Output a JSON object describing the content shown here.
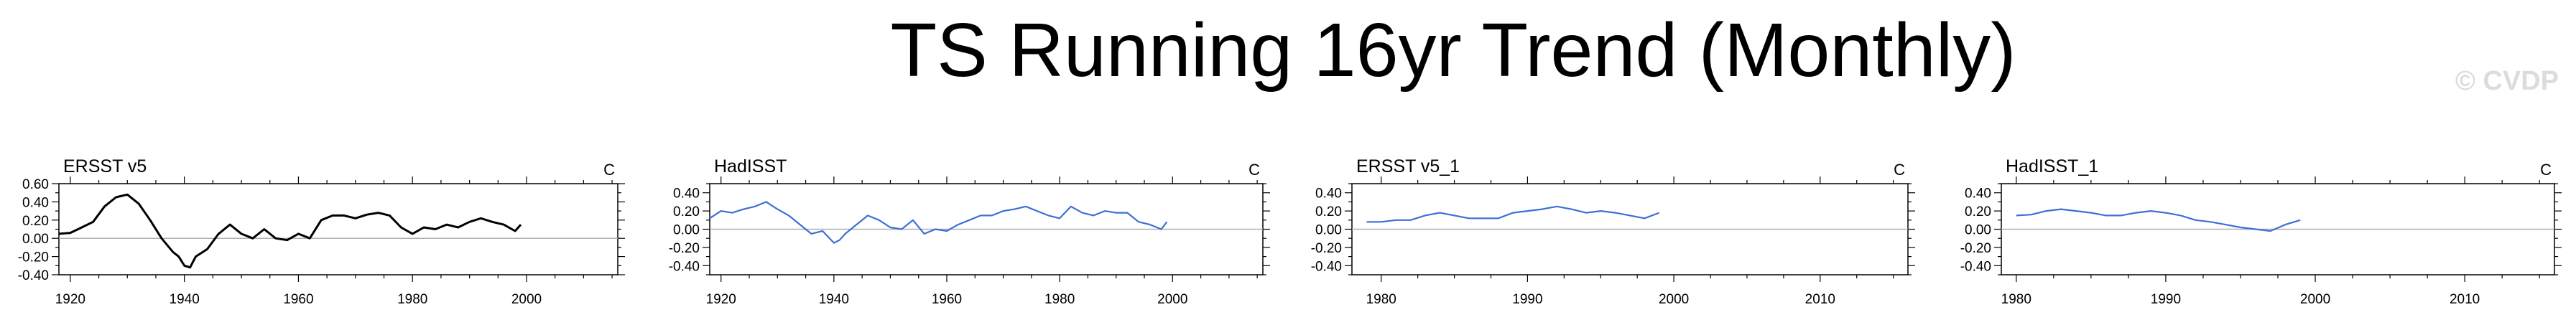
{
  "title": "TS Running 16yr Trend (Monthly)",
  "watermark": "© CVDP",
  "colors": {
    "black_series": "#000000",
    "blue_series": "#3d6fd6",
    "zero_line": "#b0b0b0",
    "axes": "#000000"
  },
  "chart_data": [
    {
      "type": "line",
      "title": "ERSST v5",
      "units": "C",
      "color": "#000000",
      "xlim": [
        1918,
        2016
      ],
      "ylim": [
        -0.4,
        0.6
      ],
      "xticks": [
        1920,
        1940,
        1960,
        1980,
        2000
      ],
      "xtick_labels": [
        "1920",
        "1940",
        "1960",
        "1980",
        "2000"
      ],
      "yticks": [
        -0.4,
        -0.2,
        0.0,
        0.2,
        0.4,
        0.6
      ],
      "ytick_labels": [
        "-0.40",
        "-0.20",
        "0.00",
        "0.20",
        "0.40",
        "0.60"
      ],
      "series": [
        {
          "x": [
            1918,
            1920,
            1922,
            1924,
            1926,
            1928,
            1930,
            1932,
            1934,
            1936,
            1938,
            1939,
            1940,
            1941,
            1942,
            1944,
            1946,
            1948,
            1950,
            1952,
            1954,
            1956,
            1958,
            1960,
            1962,
            1964,
            1966,
            1968,
            1970,
            1972,
            1974,
            1976,
            1978,
            1980,
            1982,
            1984,
            1986,
            1988,
            1990,
            1992,
            1994,
            1996,
            1998,
            1999
          ],
          "y": [
            0.05,
            0.06,
            0.12,
            0.18,
            0.35,
            0.45,
            0.48,
            0.38,
            0.2,
            0.0,
            -0.15,
            -0.2,
            -0.3,
            -0.32,
            -0.2,
            -0.12,
            0.05,
            0.15,
            0.05,
            0.0,
            0.1,
            0.0,
            -0.02,
            0.05,
            0.0,
            0.2,
            0.25,
            0.25,
            0.22,
            0.26,
            0.28,
            0.25,
            0.12,
            0.05,
            0.12,
            0.1,
            0.15,
            0.12,
            0.18,
            0.22,
            0.18,
            0.15,
            0.08,
            0.15
          ]
        }
      ]
    },
    {
      "type": "line",
      "title": "HadISST",
      "units": "C",
      "color": "#3d6fd6",
      "xlim": [
        1918,
        2016
      ],
      "ylim": [
        -0.5,
        0.5
      ],
      "xticks": [
        1920,
        1940,
        1960,
        1980,
        2000
      ],
      "xtick_labels": [
        "1920",
        "1940",
        "1960",
        "1980",
        "2000"
      ],
      "yticks": [
        -0.4,
        -0.2,
        0.0,
        0.2,
        0.4
      ],
      "ytick_labels": [
        "-0.40",
        "-0.20",
        "0.00",
        "0.20",
        "0.40"
      ],
      "series": [
        {
          "x": [
            1918,
            1920,
            1922,
            1924,
            1926,
            1928,
            1930,
            1932,
            1934,
            1936,
            1938,
            1940,
            1941,
            1942,
            1944,
            1946,
            1948,
            1950,
            1952,
            1954,
            1956,
            1958,
            1960,
            1962,
            1964,
            1966,
            1968,
            1970,
            1972,
            1974,
            1976,
            1978,
            1980,
            1982,
            1984,
            1986,
            1988,
            1990,
            1992,
            1994,
            1996,
            1998,
            1999
          ],
          "y": [
            0.12,
            0.2,
            0.18,
            0.22,
            0.25,
            0.3,
            0.22,
            0.15,
            0.05,
            -0.05,
            -0.02,
            -0.15,
            -0.12,
            -0.05,
            0.05,
            0.15,
            0.1,
            0.02,
            0.0,
            0.1,
            -0.05,
            0.0,
            -0.02,
            0.05,
            0.1,
            0.15,
            0.15,
            0.2,
            0.22,
            0.25,
            0.2,
            0.15,
            0.12,
            0.25,
            0.18,
            0.15,
            0.2,
            0.18,
            0.18,
            0.08,
            0.05,
            0.0,
            0.08
          ]
        }
      ]
    },
    {
      "type": "line",
      "title": "ERSST v5_1",
      "units": "C",
      "color": "#3d6fd6",
      "xlim": [
        1978,
        2016
      ],
      "ylim": [
        -0.5,
        0.5
      ],
      "xticks": [
        1980,
        1990,
        2000,
        2010
      ],
      "xtick_labels": [
        "1980",
        "1990",
        "2000",
        "2010"
      ],
      "yticks": [
        -0.4,
        -0.2,
        0.0,
        0.2,
        0.4
      ],
      "ytick_labels": [
        "-0.40",
        "-0.20",
        "0.00",
        "0.20",
        "0.40"
      ],
      "series": [
        {
          "x": [
            1979,
            1980,
            1981,
            1982,
            1983,
            1984,
            1985,
            1986,
            1987,
            1988,
            1989,
            1990,
            1991,
            1992,
            1993,
            1994,
            1995,
            1996,
            1997,
            1998,
            1999
          ],
          "y": [
            0.08,
            0.08,
            0.1,
            0.1,
            0.15,
            0.18,
            0.15,
            0.12,
            0.12,
            0.12,
            0.18,
            0.2,
            0.22,
            0.25,
            0.22,
            0.18,
            0.2,
            0.18,
            0.15,
            0.12,
            0.18
          ]
        }
      ]
    },
    {
      "type": "line",
      "title": "HadISST_1",
      "units": "C",
      "color": "#3d6fd6",
      "xlim": [
        1979,
        2016
      ],
      "ylim": [
        -0.5,
        0.5
      ],
      "xticks": [
        1980,
        1990,
        2000,
        2010
      ],
      "xtick_labels": [
        "1980",
        "1990",
        "2000",
        "2010"
      ],
      "yticks": [
        -0.4,
        -0.2,
        0.0,
        0.2,
        0.4
      ],
      "ytick_labels": [
        "-0.40",
        "-0.20",
        "0.00",
        "0.20",
        "0.40"
      ],
      "series": [
        {
          "x": [
            1980,
            1981,
            1982,
            1983,
            1984,
            1985,
            1986,
            1987,
            1988,
            1989,
            1990,
            1991,
            1992,
            1993,
            1994,
            1995,
            1996,
            1997,
            1998,
            1999
          ],
          "y": [
            0.15,
            0.16,
            0.2,
            0.22,
            0.2,
            0.18,
            0.15,
            0.15,
            0.18,
            0.2,
            0.18,
            0.15,
            0.1,
            0.08,
            0.05,
            0.02,
            0.0,
            -0.02,
            0.05,
            0.1
          ]
        }
      ]
    }
  ]
}
